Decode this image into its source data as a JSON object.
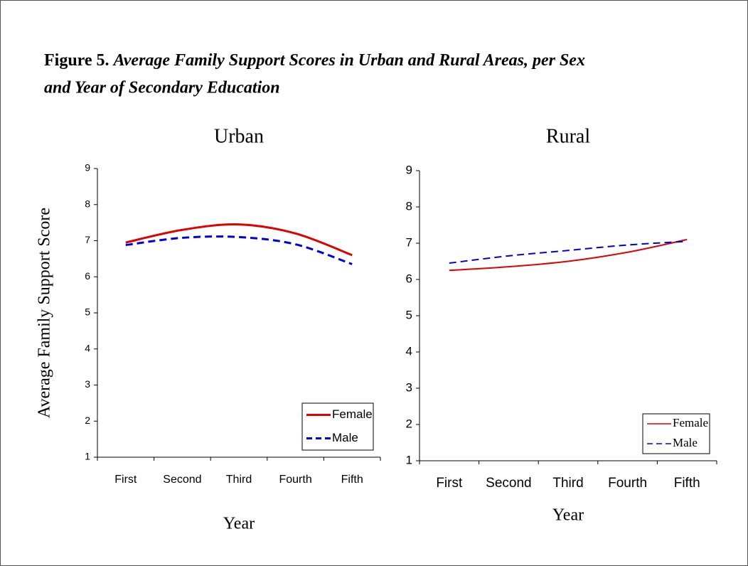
{
  "figure": {
    "label": "Figure 5.",
    "caption_line1": "Average Family Support Scores in Urban and Rural Areas, per Sex",
    "caption_line2": "and Year of Secondary Education"
  },
  "chart_data": [
    {
      "type": "line",
      "title": "Urban",
      "xlabel": "Year",
      "ylabel": "Average Family Support Score",
      "categories": [
        "First",
        "Second",
        "Third",
        "Fourth",
        "Fifth"
      ],
      "series": [
        {
          "name": "Female",
          "color": "#e00000",
          "dash": "solid",
          "values": [
            6.95,
            7.3,
            7.45,
            7.2,
            6.6
          ]
        },
        {
          "name": "Male",
          "color": "#0000dd",
          "dash": "dashed",
          "values": [
            6.88,
            7.08,
            7.1,
            6.9,
            6.35
          ]
        }
      ],
      "ylim": [
        1,
        9
      ],
      "yticks": [
        1,
        2,
        3,
        4,
        5,
        6,
        7,
        8,
        9
      ],
      "legend": "lower right"
    },
    {
      "type": "line",
      "title": "Rural",
      "xlabel": "Year",
      "categories": [
        "First",
        "Second",
        "Third",
        "Fourth",
        "Fifth"
      ],
      "series": [
        {
          "name": "Female",
          "color": "#e00000",
          "dash": "solid",
          "values": [
            6.25,
            6.35,
            6.5,
            6.75,
            7.1
          ]
        },
        {
          "name": "Male",
          "color": "#0000dd",
          "dash": "dashed",
          "values": [
            6.45,
            6.65,
            6.8,
            6.95,
            7.05
          ]
        }
      ],
      "ylim": [
        1,
        9
      ],
      "yticks": [
        1,
        2,
        3,
        4,
        5,
        6,
        7,
        8,
        9
      ],
      "legend": "lower right"
    }
  ]
}
